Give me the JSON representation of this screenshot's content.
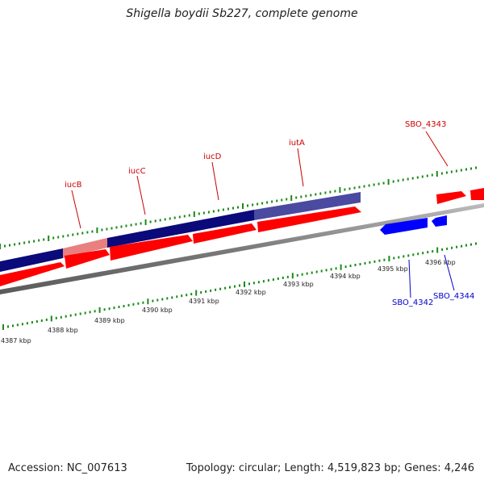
{
  "title": "Shigella boydii Sb227, complete genome",
  "footer": {
    "accession": "Accession: NC_007613",
    "summary": "Topology: circular; Length: 4,519,823 bp; Genes: 4,246"
  },
  "colors": {
    "forward_gene": "#ff0000",
    "reverse_gene": "#0000ff",
    "operon_dark": "#0a0a7a",
    "operon_light": "#e88080",
    "tick": "#1a8a1a",
    "backbone": "#808080",
    "label_forward": "#cc0000",
    "label_reverse": "#0000cc"
  },
  "scale_labels": [
    "4387 kbp",
    "4388 kbp",
    "4389 kbp",
    "4390 kbp",
    "4391 kbp",
    "4392 kbp",
    "4393 kbp",
    "4394 kbp",
    "4395 kbp",
    "4396 kbp"
  ],
  "genes": [
    {
      "label": "SBO_4343",
      "strand": "forward"
    },
    {
      "label": "iutA",
      "strand": "forward"
    },
    {
      "label": "iucD",
      "strand": "forward"
    },
    {
      "label": "iucC",
      "strand": "forward"
    },
    {
      "label": "iucB",
      "strand": "forward"
    },
    {
      "label": "SBO_4342",
      "strand": "reverse"
    },
    {
      "label": "SBO_4344",
      "strand": "reverse"
    }
  ]
}
